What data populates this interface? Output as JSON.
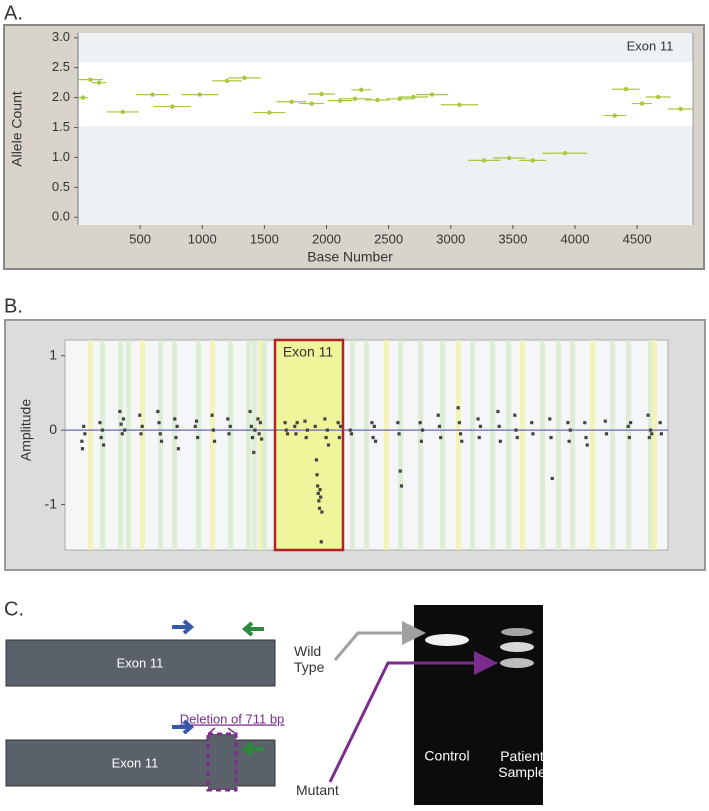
{
  "panel_labels": [
    "A.",
    "B.",
    "C."
  ],
  "chart_data": [
    {
      "type": "segments",
      "annotation": "Exon 11",
      "x_label": "Base Number",
      "y_label": "Allele Count",
      "color": "#a8c83c",
      "x": [
        40,
        100,
        170,
        360,
        600,
        760,
        980,
        1200,
        1340,
        1540,
        1720,
        1880,
        1960,
        2110,
        2230,
        2280,
        2410,
        2590,
        2700,
        2850,
        3070,
        3270,
        3470,
        3660,
        3920,
        4320,
        4410,
        4540,
        4670,
        4850
      ],
      "values": [
        2.0,
        2.3,
        2.25,
        1.76,
        2.05,
        1.85,
        2.05,
        2.28,
        2.33,
        1.75,
        1.93,
        1.9,
        2.06,
        1.95,
        1.98,
        2.13,
        1.96,
        1.98,
        2.01,
        2.05,
        1.88,
        0.95,
        0.99,
        0.95,
        1.07,
        1.7,
        2.14,
        1.9,
        2.01,
        1.81
      ],
      "x_err": [
        40,
        100,
        60,
        130,
        130,
        150,
        150,
        120,
        130,
        130,
        120,
        100,
        110,
        100,
        130,
        80,
        100,
        110,
        120,
        130,
        150,
        130,
        130,
        110,
        180,
        90,
        110,
        80,
        100,
        100
      ],
      "xlim": [
        0,
        4950
      ],
      "xticks": [
        500,
        1000,
        1500,
        2000,
        2500,
        3000,
        3500,
        4000,
        4500
      ],
      "ylim": [
        -0.13,
        3.08
      ],
      "yticks": [
        {
          "value": 0,
          "label": "0.0"
        },
        {
          "value": 0.5,
          "label": "0.5"
        },
        {
          "value": 1,
          "label": "1.0"
        },
        {
          "value": 1.5,
          "label": "1.5"
        },
        {
          "value": 2,
          "label": "2.0"
        },
        {
          "value": 2.5,
          "label": "2.5"
        },
        {
          "value": 3,
          "label": "3.0"
        }
      ]
    },
    {
      "type": "scatter",
      "annotation": "Exon 11",
      "y_label": "Amplitude",
      "color": "#444444",
      "x": [
        2.8,
        2.9,
        3.1,
        3.3,
        5.8,
        6.0,
        6.2,
        6.4,
        9.1,
        9.3,
        9.5,
        9.7,
        9.9,
        12.4,
        12.6,
        12.8,
        15.4,
        15.6,
        15.8,
        16.0,
        18.2,
        18.4,
        18.6,
        18.8,
        21.6,
        21.8,
        22.0,
        24.4,
        24.6,
        24.8,
        27.0,
        27.2,
        27.4,
        30.7,
        30.9,
        31.1,
        31.3,
        31.5,
        32.0,
        32.2,
        32.4,
        32.6,
        36.5,
        36.7,
        36.9,
        38.1,
        38.3,
        38.5,
        39.8,
        40.0,
        40.2,
        41.5,
        41.7,
        41.8,
        41.9,
        42.0,
        42.1,
        42.2,
        42.3,
        42.4,
        42.5,
        42.6,
        43.1,
        43.3,
        43.5,
        43.7,
        45.3,
        45.5,
        45.7,
        47.3,
        47.5,
        50.9,
        51.1,
        51.3,
        51.5,
        55.2,
        55.4,
        55.6,
        55.8,
        58.9,
        59.1,
        59.3,
        61.9,
        62.1,
        62.3,
        65.2,
        65.4,
        65.6,
        65.8,
        68.5,
        68.7,
        68.9,
        71.8,
        72.0,
        72.2,
        74.6,
        74.8,
        75.0,
        77.4,
        77.6,
        80.4,
        80.6,
        80.8,
        83.4,
        83.6,
        83.8,
        86.2,
        86.4,
        86.6,
        89.6,
        89.8,
        93.4,
        93.6,
        93.8,
        96.7,
        96.9,
        97.1,
        97.3,
        98.7,
        98.9
      ],
      "values": [
        -0.15,
        -0.25,
        0.05,
        -0.05,
        0.1,
        -0.1,
        0.0,
        -0.2,
        0.25,
        0.08,
        -0.05,
        0.15,
        0.0,
        0.2,
        -0.05,
        0.05,
        0.25,
        0.1,
        -0.05,
        -0.15,
        0.15,
        -0.1,
        0.05,
        -0.25,
        0.05,
        0.12,
        -0.1,
        0.2,
        0.0,
        -0.15,
        0.15,
        -0.05,
        0.05,
        0.25,
        0.05,
        -0.1,
        -0.3,
        0.0,
        0.15,
        -0.05,
        0.1,
        -0.12,
        0.1,
        0.0,
        -0.05,
        0.05,
        -0.05,
        0.1,
        0.12,
        -0.1,
        0.0,
        0.05,
        -0.4,
        -0.6,
        -0.75,
        -0.85,
        -0.95,
        -1.05,
        -0.8,
        -0.9,
        -1.5,
        -1.1,
        0.15,
        -0.1,
        0.0,
        -0.2,
        0.1,
        -0.1,
        0.05,
        0.0,
        -0.05,
        0.1,
        -0.1,
        0.05,
        -0.15,
        0.1,
        -0.05,
        -0.55,
        -0.75,
        0.1,
        -0.15,
        0.0,
        0.2,
        0.05,
        -0.1,
        0.3,
        0.1,
        -0.05,
        -0.15,
        0.15,
        -0.1,
        0.05,
        0.25,
        0.05,
        -0.15,
        0.2,
        0.0,
        -0.1,
        0.1,
        -0.05,
        0.15,
        -0.1,
        -0.65,
        0.1,
        -0.15,
        0.0,
        0.1,
        -0.1,
        -0.2,
        0.12,
        -0.05,
        0.05,
        -0.1,
        0.1,
        0.2,
        -0.1,
        0.0,
        -0.05,
        0.1,
        -0.05
      ],
      "xlim": [
        0,
        100
      ],
      "ylim": [
        -1.61,
        1.21
      ],
      "yticks": [
        -1,
        0,
        1
      ]
    }
  ],
  "panel_c": {
    "wild_exon": "Exon 11",
    "mutant_exon": "Exon 11",
    "deletion": "Deletion of 711 bp",
    "wild_type": "Wild Type",
    "mutant": "Mutant",
    "control": "Control",
    "patient": "Patient Sample"
  }
}
